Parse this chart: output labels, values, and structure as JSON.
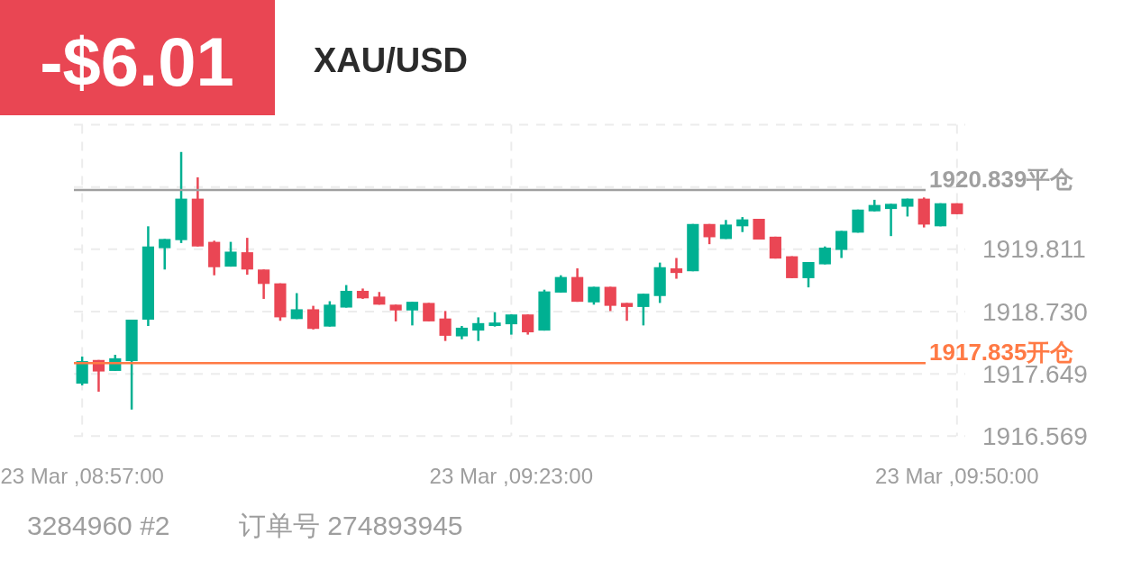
{
  "chart_data": {
    "type": "candlestick",
    "title": "XAU/USD",
    "annotations": [
      "-$6.01",
      "3284960 #2",
      "订单号 274893945"
    ],
    "categories": [
      "23 Mar ,08:57:00",
      null,
      null,
      null,
      null,
      null,
      null,
      null,
      null,
      null,
      null,
      null,
      null,
      null,
      null,
      null,
      null,
      null,
      null,
      null,
      null,
      null,
      null,
      null,
      null,
      null,
      "23 Mar ,09:23:00",
      null,
      null,
      null,
      null,
      null,
      null,
      null,
      null,
      null,
      null,
      null,
      null,
      null,
      null,
      null,
      null,
      null,
      null,
      null,
      null,
      null,
      null,
      null,
      null,
      null,
      null,
      "23 Mar ,09:50:00"
    ],
    "ohlc": [
      [
        1917.48,
        1917.95,
        1917.45,
        1917.87
      ],
      [
        1917.89,
        1917.89,
        1917.34,
        1917.69
      ],
      [
        1917.7,
        1917.98,
        1917.7,
        1917.92
      ],
      [
        1917.87,
        1918.59,
        1917.03,
        1918.59
      ],
      [
        1918.59,
        1920.21,
        1918.48,
        1919.86
      ],
      [
        1919.83,
        1919.99,
        1919.46,
        1919.99
      ],
      [
        1919.97,
        1921.5,
        1919.92,
        1920.69
      ],
      [
        1920.69,
        1921.06,
        1919.86,
        1919.86
      ],
      [
        1919.94,
        1919.96,
        1919.36,
        1919.5
      ],
      [
        1919.51,
        1919.94,
        1919.51,
        1919.77
      ],
      [
        1919.76,
        1920.01,
        1919.37,
        1919.46
      ],
      [
        1919.46,
        1919.46,
        1918.95,
        1919.21
      ],
      [
        1919.22,
        1919.22,
        1918.57,
        1918.63
      ],
      [
        1918.6,
        1919.05,
        1918.6,
        1918.77
      ],
      [
        1918.77,
        1918.83,
        1918.42,
        1918.43
      ],
      [
        1918.47,
        1918.91,
        1918.47,
        1918.85
      ],
      [
        1918.8,
        1919.19,
        1918.8,
        1919.09
      ],
      [
        1919.09,
        1919.13,
        1918.95,
        1918.96
      ],
      [
        1918.99,
        1919.07,
        1918.85,
        1918.85
      ],
      [
        1918.85,
        1918.85,
        1918.56,
        1918.75
      ],
      [
        1918.75,
        1918.9,
        1918.49,
        1918.9
      ],
      [
        1918.88,
        1918.88,
        1918.56,
        1918.56
      ],
      [
        1918.61,
        1918.74,
        1918.22,
        1918.31
      ],
      [
        1918.3,
        1918.48,
        1918.25,
        1918.45
      ],
      [
        1918.4,
        1918.63,
        1918.22,
        1918.53
      ],
      [
        1918.48,
        1918.72,
        1918.47,
        1918.54
      ],
      [
        1918.51,
        1918.68,
        1918.33,
        1918.68
      ],
      [
        1918.68,
        1918.68,
        1918.33,
        1918.37
      ],
      [
        1918.4,
        1919.11,
        1918.4,
        1919.08
      ],
      [
        1919.06,
        1919.36,
        1919.06,
        1919.33
      ],
      [
        1919.33,
        1919.48,
        1918.9,
        1918.9
      ],
      [
        1918.89,
        1919.16,
        1918.85,
        1919.16
      ],
      [
        1919.16,
        1919.16,
        1918.74,
        1918.83
      ],
      [
        1918.88,
        1918.88,
        1918.57,
        1918.81
      ],
      [
        1918.81,
        1919.04,
        1918.49,
        1919.04
      ],
      [
        1919.0,
        1919.58,
        1918.88,
        1919.5
      ],
      [
        1919.48,
        1919.66,
        1919.3,
        1919.4
      ],
      [
        1919.43,
        1920.25,
        1919.43,
        1920.25
      ],
      [
        1920.25,
        1920.25,
        1919.9,
        1920.02
      ],
      [
        1919.99,
        1920.32,
        1919.99,
        1920.24
      ],
      [
        1920.21,
        1920.37,
        1920.11,
        1920.33
      ],
      [
        1920.34,
        1920.34,
        1919.98,
        1919.98
      ],
      [
        1920.03,
        1920.03,
        1919.65,
        1919.65
      ],
      [
        1919.69,
        1919.69,
        1919.31,
        1919.31
      ],
      [
        1919.31,
        1919.59,
        1919.15,
        1919.59
      ],
      [
        1919.55,
        1919.86,
        1919.55,
        1919.84
      ],
      [
        1919.8,
        1920.13,
        1919.66,
        1920.13
      ],
      [
        1920.1,
        1920.5,
        1920.1,
        1920.5
      ],
      [
        1920.47,
        1920.67,
        1920.47,
        1920.58
      ],
      [
        1920.51,
        1920.6,
        1920.04,
        1920.6
      ],
      [
        1920.55,
        1920.69,
        1920.38,
        1920.69
      ],
      [
        1920.69,
        1920.71,
        1920.19,
        1920.24
      ],
      [
        1920.21,
        1920.61,
        1920.21,
        1920.61
      ],
      [
        1920.61,
        1920.61,
        1920.42,
        1920.42
      ]
    ],
    "colors": [
      "#00b092",
      "#ea4654",
      "#00b092",
      "#00b092",
      "#00b092",
      "#00b092",
      "#00b092",
      "#ea4654",
      "#ea4654",
      "#00b092",
      "#ea4654",
      "#ea4654",
      "#ea4654",
      "#00b092",
      "#ea4654",
      "#00b092",
      "#00b092",
      "#ea4654",
      "#ea4654",
      "#ea4654",
      "#00b092",
      "#ea4654",
      "#ea4654",
      "#00b092",
      "#00b092",
      "#00b092",
      "#00b092",
      "#ea4654",
      "#00b092",
      "#00b092",
      "#ea4654",
      "#00b092",
      "#ea4654",
      "#ea4654",
      "#00b092",
      "#00b092",
      "#ea4654",
      "#00b092",
      "#ea4654",
      "#00b092",
      "#00b092",
      "#ea4654",
      "#ea4654",
      "#ea4654",
      "#00b092",
      "#00b092",
      "#00b092",
      "#00b092",
      "#00b092",
      "#00b092",
      "#00b092",
      "#ea4654",
      "#00b092",
      "#ea4654"
    ],
    "ylim": [
      1916.569,
      1921.973
    ],
    "yticks": [
      1916.569,
      1917.649,
      {
        "value": 1918.73,
        "label": "1918.730"
      },
      1919.811,
      {
        "value": 1920.892,
        "label": null
      },
      {
        "value": 1921.973,
        "label": null
      }
    ],
    "grid": true,
    "ref_lines": [
      {
        "axis": "y",
        "value": 1920.839,
        "label": "1920.839平仓",
        "color": "#a0a0a0"
      },
      {
        "axis": "y",
        "value": 1917.835,
        "label": "1917.835开仓",
        "color": "#ff7a45"
      }
    ]
  }
}
